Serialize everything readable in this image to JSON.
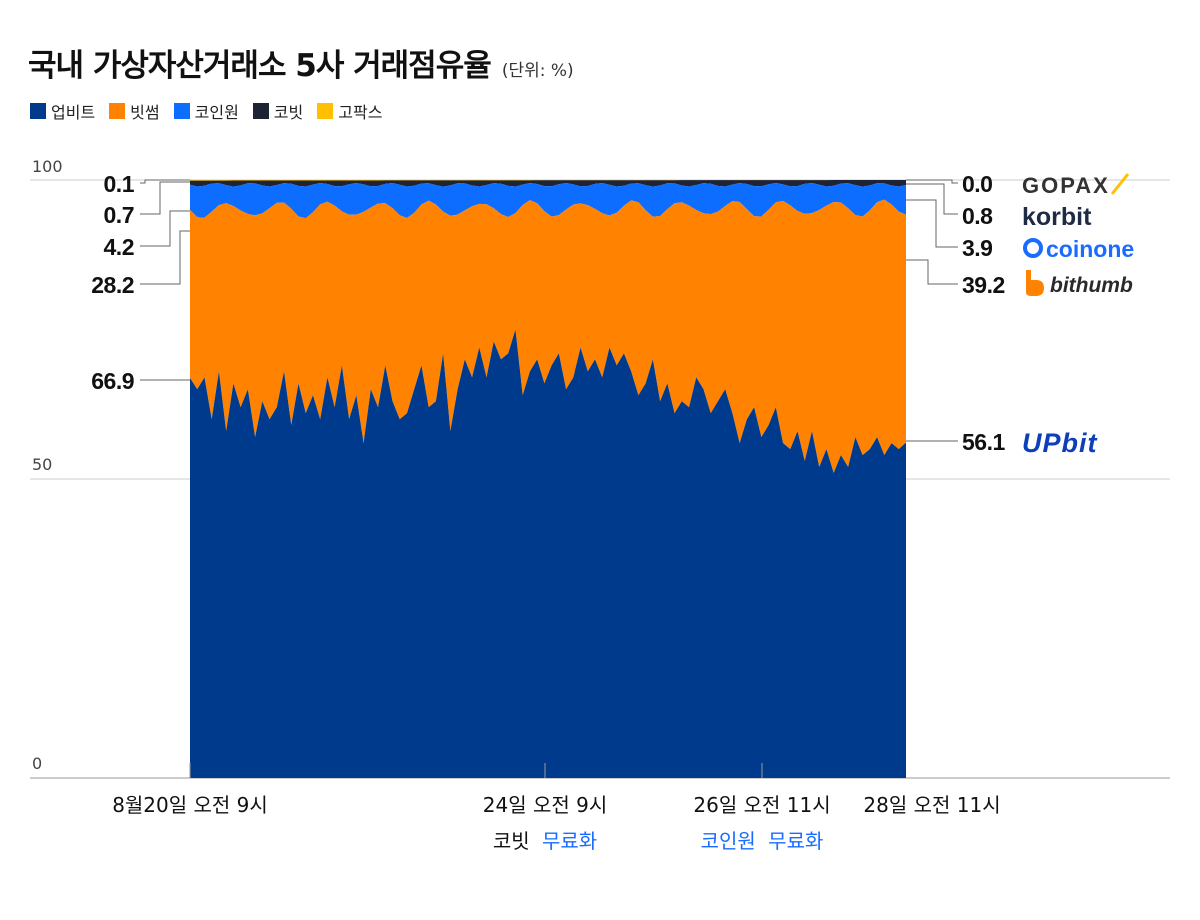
{
  "header": {
    "title": "국내 가상자산거래소 5사 거래점유율",
    "unit": "(단위: %)"
  },
  "chart_data": {
    "type": "area",
    "stacked": true,
    "ylim": [
      0,
      100
    ],
    "yticks": [
      "100",
      "50",
      "0"
    ],
    "legend": [
      {
        "name": "업비트",
        "color": "#003a8c"
      },
      {
        "name": "빗썸",
        "color": "#ff8300"
      },
      {
        "name": "코인원",
        "color": "#0d6dff"
      },
      {
        "name": "코빗",
        "color": "#1e2433"
      },
      {
        "name": "고팍스",
        "color": "#ffc000"
      }
    ],
    "series": [
      {
        "name": "업비트",
        "color": "#003a8c",
        "start": "66.9",
        "end": "56.1",
        "values": [
          66.9,
          65,
          67,
          60,
          68,
          58,
          66,
          62,
          65,
          57,
          63,
          60,
          62,
          68,
          59,
          66,
          61,
          64,
          60,
          67,
          62,
          69,
          60,
          64,
          56,
          65,
          62,
          69,
          63,
          60,
          61,
          65,
          69,
          62,
          63,
          71,
          58,
          65,
          70,
          67,
          72,
          67,
          73,
          70,
          71,
          75,
          64,
          68,
          70,
          66,
          69,
          71,
          65,
          67,
          72,
          68,
          70,
          67,
          72,
          69,
          71,
          68,
          64,
          66,
          70,
          63,
          66,
          61,
          63,
          62,
          67,
          65,
          61,
          63,
          65,
          61,
          56,
          60,
          62,
          57,
          59,
          62,
          56,
          55,
          58,
          53,
          58,
          52,
          55,
          51,
          54,
          52,
          57,
          54,
          55,
          57,
          54,
          56,
          55,
          56.1
        ]
      },
      {
        "name": "빗썸",
        "color": "#ff8300",
        "start": "28.2",
        "end": "39.2"
      },
      {
        "name": "코인원",
        "color": "#0d6dff",
        "start": "4.2",
        "end": "3.9"
      },
      {
        "name": "코빗",
        "color": "#1e2433",
        "start": "0.7",
        "end": "0.8"
      },
      {
        "name": "고팍스",
        "color": "#ffc000",
        "start": "0.1",
        "end": "0.0"
      }
    ],
    "x_annotations": [
      {
        "date": "8월20일 오전 9시",
        "pos": 0
      },
      {
        "date": "24일 오전 9시",
        "pos": 0.496,
        "event_prefix": "코빗",
        "event_highlight": "무료화"
      },
      {
        "date": "26일 오전 11시",
        "pos": 0.799,
        "event_prefix": "코인원",
        "event_highlight": "무료화"
      },
      {
        "date": "28일 오전 11시",
        "pos": 1
      }
    ],
    "brands": [
      "GOPAX",
      "korbit",
      "coinone",
      "bithumb",
      "UPbit"
    ]
  }
}
